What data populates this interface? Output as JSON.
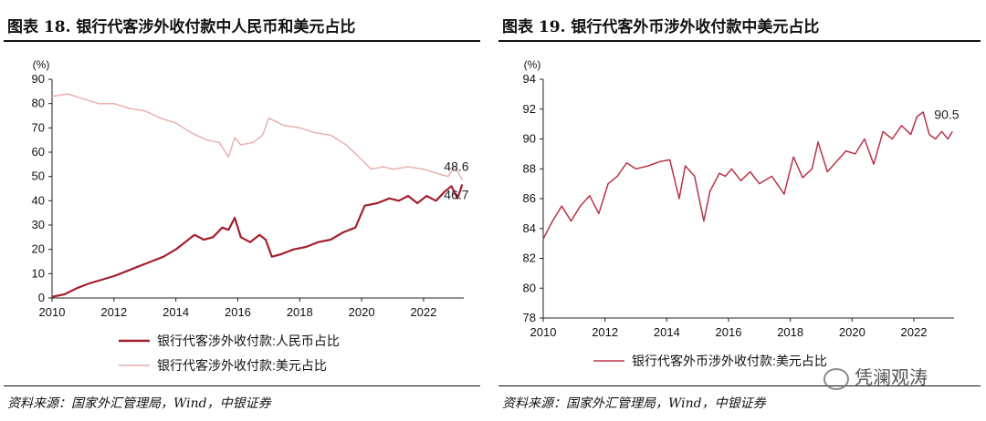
{
  "chart_data": [
    {
      "type": "line",
      "title": "图表 18. 银行代客涉外收付款中人民币和美元占比",
      "ylabel": "(%)",
      "ylim": [
        0,
        90
      ],
      "yticks": [
        0,
        10,
        20,
        30,
        40,
        50,
        60,
        70,
        80,
        90
      ],
      "xlim": [
        2010,
        2023.3
      ],
      "xticks": [
        2010,
        2012,
        2014,
        2016,
        2018,
        2020,
        2022
      ],
      "grid": false,
      "legend": "bottom",
      "series": [
        {
          "name": "银行代客涉外收付款:人民币占比",
          "color": "#a31f2e",
          "x": [
            2010.0,
            2010.4,
            2010.8,
            2011.2,
            2011.6,
            2012.0,
            2012.4,
            2012.8,
            2013.2,
            2013.6,
            2014.0,
            2014.3,
            2014.6,
            2014.9,
            2015.2,
            2015.5,
            2015.7,
            2015.9,
            2016.1,
            2016.4,
            2016.7,
            2016.9,
            2017.1,
            2017.4,
            2017.8,
            2018.2,
            2018.6,
            2019.0,
            2019.4,
            2019.8,
            2020.1,
            2020.5,
            2020.9,
            2021.2,
            2021.5,
            2021.8,
            2022.1,
            2022.4,
            2022.7,
            2022.9,
            2023.1,
            2023.25
          ],
          "values": [
            0.5,
            1.5,
            4,
            6,
            7.5,
            9,
            11,
            13,
            15,
            17,
            20,
            23,
            26,
            24,
            25,
            29,
            28,
            33,
            25,
            23,
            26,
            24,
            17,
            18,
            20,
            21,
            23,
            24,
            27,
            29,
            38,
            39,
            41,
            40,
            42,
            39,
            42,
            40,
            44,
            46,
            41,
            46.7
          ]
        },
        {
          "name": "银行代客涉外收付款:美元占比",
          "color": "#eab0b0",
          "x": [
            2010.0,
            2010.5,
            2011.0,
            2011.5,
            2012.0,
            2012.5,
            2013.0,
            2013.5,
            2014.0,
            2014.5,
            2015.0,
            2015.4,
            2015.7,
            2015.9,
            2016.1,
            2016.5,
            2016.8,
            2017.0,
            2017.5,
            2018.0,
            2018.5,
            2019.0,
            2019.5,
            2020.0,
            2020.3,
            2020.7,
            2021.0,
            2021.5,
            2022.0,
            2022.5,
            2022.8,
            2023.0,
            2023.1,
            2023.25
          ],
          "values": [
            83,
            84,
            82,
            80,
            80,
            78,
            77,
            74,
            72,
            68,
            65,
            64,
            58,
            66,
            63,
            64,
            67,
            74,
            71,
            70,
            68,
            67,
            63,
            57,
            53,
            54,
            53,
            54,
            53,
            51,
            50,
            54,
            52,
            48.6
          ]
        }
      ],
      "annotations": [
        {
          "text": "48.6",
          "x": 2023.25,
          "y": 48.6,
          "series": 1
        },
        {
          "text": "46.7",
          "x": 2023.25,
          "y": 46.7,
          "series": 0
        }
      ],
      "source": "资料来源：国家外汇管理局，Wind，中银证券"
    },
    {
      "type": "line",
      "title": "图表 19. 银行代客外币涉外收付款中美元占比",
      "ylabel": "(%)",
      "ylim": [
        78,
        94
      ],
      "yticks": [
        78,
        80,
        82,
        84,
        86,
        88,
        90,
        92,
        94
      ],
      "xlim": [
        2010,
        2023.3
      ],
      "xticks": [
        2010,
        2012,
        2014,
        2016,
        2018,
        2020,
        2022
      ],
      "grid": false,
      "legend": "bottom",
      "series": [
        {
          "name": "银行代客外币涉外收付款:美元占比",
          "color": "#b8334a",
          "x": [
            2010.0,
            2010.3,
            2010.6,
            2010.9,
            2011.2,
            2011.5,
            2011.8,
            2012.1,
            2012.4,
            2012.7,
            2013.0,
            2013.4,
            2013.8,
            2014.1,
            2014.4,
            2014.6,
            2014.9,
            2015.2,
            2015.4,
            2015.7,
            2015.9,
            2016.1,
            2016.4,
            2016.7,
            2017.0,
            2017.4,
            2017.8,
            2018.1,
            2018.4,
            2018.7,
            2018.9,
            2019.2,
            2019.5,
            2019.8,
            2020.1,
            2020.4,
            2020.7,
            2021.0,
            2021.3,
            2021.6,
            2021.9,
            2022.1,
            2022.3,
            2022.5,
            2022.7,
            2022.9,
            2023.1,
            2023.25
          ],
          "values": [
            83.3,
            84.5,
            85.5,
            84.5,
            85.5,
            86.2,
            85.0,
            87.0,
            87.5,
            88.4,
            88.0,
            88.2,
            88.5,
            88.6,
            86.0,
            88.2,
            87.5,
            84.5,
            86.5,
            87.7,
            87.5,
            88.0,
            87.2,
            87.8,
            87.0,
            87.5,
            86.3,
            88.8,
            87.4,
            88.0,
            89.8,
            87.8,
            88.5,
            89.2,
            89.0,
            90.0,
            88.3,
            90.5,
            90.0,
            90.9,
            90.3,
            91.5,
            91.8,
            90.3,
            90.0,
            90.5,
            90.0,
            90.5
          ]
        }
      ],
      "annotations": [
        {
          "text": "90.5",
          "x": 2023.25,
          "y": 90.5,
          "series": 0
        }
      ],
      "source": "资料来源：国家外汇管理局，Wind，中银证券"
    }
  ],
  "watermark": "凭澜观涛",
  "watermark_icon": "wechat-icon"
}
